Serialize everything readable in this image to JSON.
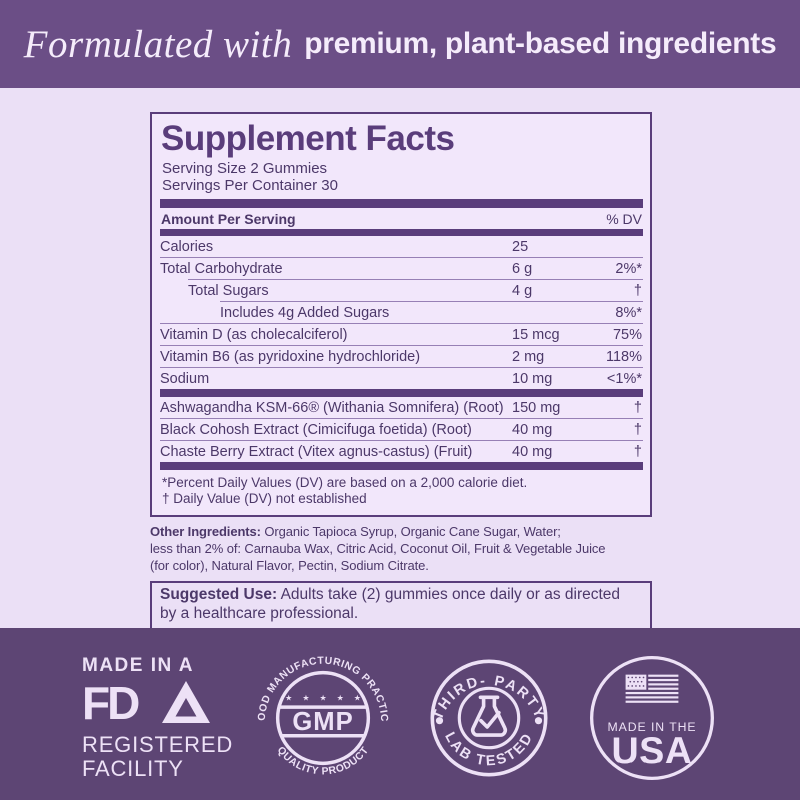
{
  "banner": {
    "italic_text": "Formulated with",
    "bold_text": "premium, plant-based ingredients"
  },
  "panel": {
    "title": "Supplement Facts",
    "serving_size": "Serving Size 2 Gummies",
    "servings_per_container": "Servings Per Container 30",
    "columns": {
      "left": "Amount Per Serving",
      "right": "% DV"
    },
    "rows": [
      {
        "name": "Calories",
        "amount": "25",
        "dv": "",
        "indent": 0,
        "sep": 0
      },
      {
        "name": "Total Carbohydrate",
        "amount": "6 g",
        "dv": "2%*",
        "indent": 0,
        "sep": 1
      },
      {
        "name": "Total Sugars",
        "amount": "4 g",
        "dv": "†",
        "indent": 1,
        "sep": 2
      },
      {
        "name": "Includes 4g Added Sugars",
        "amount": "",
        "dv": "8%*",
        "indent": 2,
        "sep": 0
      },
      {
        "name": "Vitamin D (as cholecalciferol)",
        "amount": "15 mcg",
        "dv": "75%",
        "indent": 0,
        "sep": 0
      },
      {
        "name": "Vitamin B6 (as pyridoxine hydrochloride)",
        "amount": "2 mg",
        "dv": "118%",
        "indent": 0,
        "sep": 0
      },
      {
        "name": "Sodium",
        "amount": "10 mg",
        "dv": "<1%*",
        "indent": 0,
        "sep": "bar"
      },
      {
        "name": "Ashwagandha KSM-66® (Withania Somnifera) (Root)",
        "amount": "150 mg",
        "dv": "†",
        "indent": 0,
        "sep": 0
      },
      {
        "name": "Black Cohosh Extract (Cimicifuga foetida) (Root)",
        "amount": "40 mg",
        "dv": "†",
        "indent": 0,
        "sep": 0
      },
      {
        "name": "Chaste Berry Extract (Vitex agnus-castus) (Fruit)",
        "amount": "40 mg",
        "dv": "†",
        "indent": 0,
        "sep": "bar"
      }
    ],
    "footnotes": {
      "dv": "*Percent Daily Values (DV) are based on a 2,000 calorie diet.",
      "dagger": "† Daily Value (DV) not established"
    }
  },
  "other_ingredients": {
    "label": "Other Ingredients:",
    "text": " Organic Tapioca Syrup, Organic Cane Sugar, Water;\nless than 2% of: Carnauba Wax, Citric Acid, Coconut Oil, Fruit & Vegetable Juice\n(for color), Natural Flavor, Pectin, Sodium Citrate."
  },
  "suggested_use": {
    "label": "Suggested Use:",
    "text": " Adults take (2) gummies once daily or as directed\nby a healthcare professional."
  },
  "badges": {
    "fda": {
      "line1": "MADE IN A",
      "logo": "FD",
      "line2": "REGISTERED",
      "line3": "FACILITY"
    },
    "gmp": {
      "arc_top": "GOOD MANUFACTURING PRACTICE",
      "arc_bottom": "QUALITY PRODUCT",
      "stars": "★ ★ ★ ★ ★",
      "center": "GMP"
    },
    "lab_tested": {
      "arc_top": "THIRD- PARTY",
      "arc_bottom": "LAB TESTED"
    },
    "usa": {
      "line1": "MADE IN THE",
      "line2": "USA"
    }
  },
  "colors": {
    "banner_bg": "#6B4E86",
    "band_bg": "#5D4574",
    "page_bg": "#EBE0F6",
    "panel_bg": "#F2E7FB",
    "dark_purple": "#5A3D7B",
    "text_purple": "#4C3869",
    "light_text": "#EDE1F6"
  }
}
